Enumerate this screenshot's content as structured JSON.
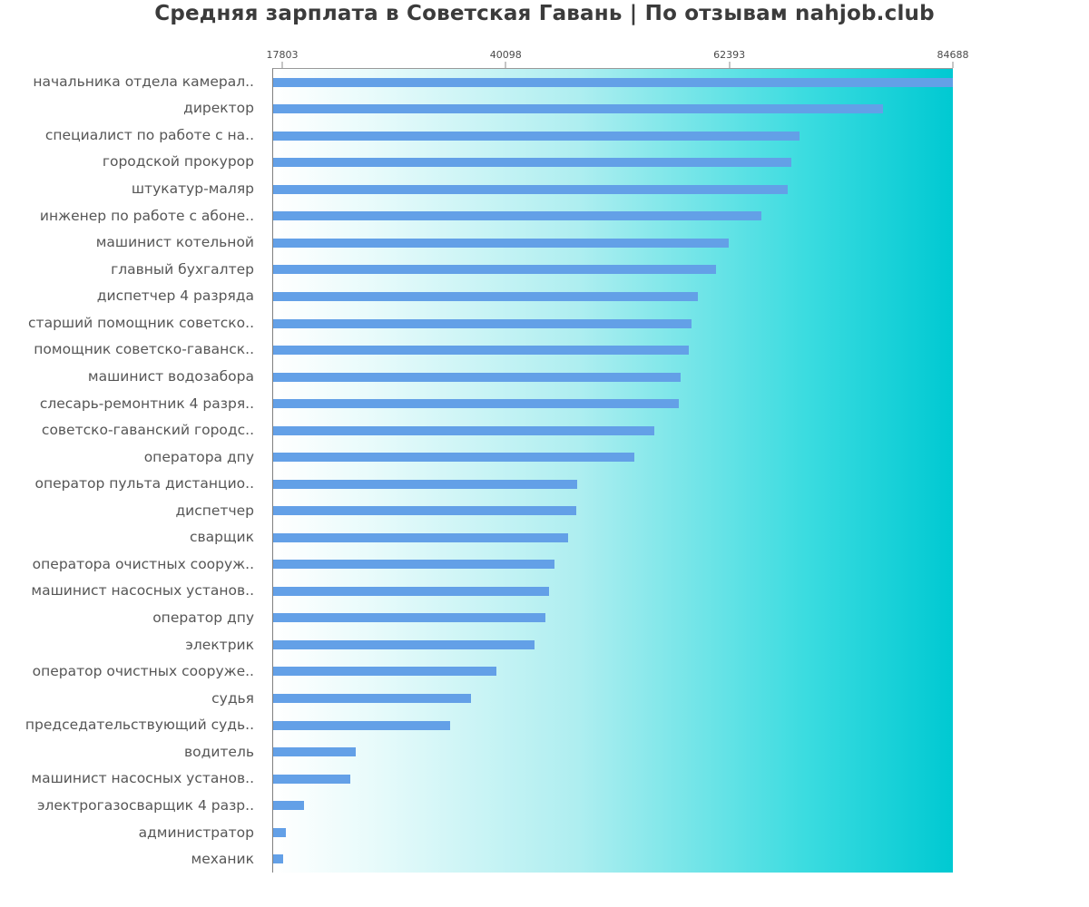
{
  "title": "Средняя зарплата в Советская Гавань | По отзывам nahjob.club",
  "chart_data": {
    "type": "bar",
    "orientation": "horizontal",
    "title": "Средняя зарплата в Советская Гавань | По отзывам nahjob.club",
    "xlabel": "",
    "ylabel": "",
    "xlim": [
      16811,
      84688
    ],
    "x_ticks": [
      17803,
      40098,
      62393,
      84688
    ],
    "grid": false,
    "legend": false,
    "categories": [
      "начальника отдела камерал..",
      "директор",
      "специалист по работе с на..",
      "городской прокурор",
      "штукатур-маляр",
      "инженер по работе с абоне..",
      "машинист котельной",
      "главный бухгалтер",
      "диспетчер 4 разряда",
      "старший помощник советско..",
      "помощник советско-гаванск..",
      "машинист водозабора",
      "слесарь-ремонтник 4 разря..",
      "советско-гаванский городс..",
      "оператора дпу",
      "оператор пульта дистанцио..",
      "диспетчер",
      "сварщик",
      "оператора очистных сооруж..",
      "машинист насосных установ..",
      "оператор дпу",
      "электрик",
      "оператор очистных сооруже..",
      "судья",
      "председательствующий судь..",
      "водитель",
      "машинист насосных установ..",
      "электрогазосварщик 4 разр..",
      "администратор",
      "механик"
    ],
    "values": [
      84688,
      77700,
      69400,
      68600,
      68200,
      65600,
      62300,
      61000,
      59200,
      58600,
      58300,
      57500,
      57300,
      54900,
      52900,
      47200,
      47100,
      46300,
      44900,
      44400,
      44000,
      42900,
      39100,
      36600,
      34500,
      25100,
      24500,
      19900,
      18100,
      17803
    ],
    "colors": {
      "bar": "#63a0e7",
      "plot_gradient_left": "#ffffff",
      "plot_gradient_right": "#00c9d2",
      "axis_line": "#808080",
      "tick_label": "#4a4a4a",
      "category_label": "#565656",
      "title": "#3b3b3b"
    }
  }
}
